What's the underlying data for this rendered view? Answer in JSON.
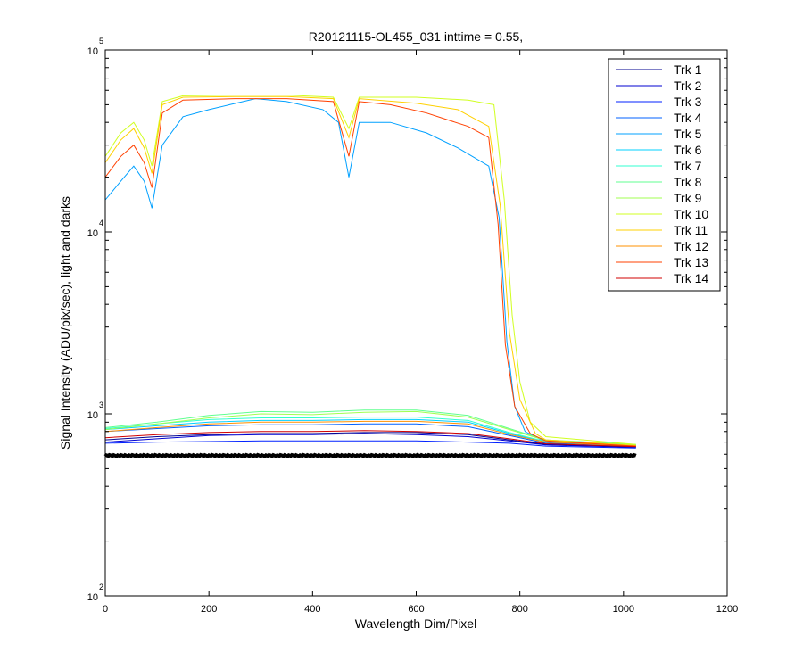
{
  "chart_data": {
    "type": "line",
    "title": "R20121115-OL455_031 inttime = 0.55,",
    "xlabel": "Wavelength Dim/Pixel",
    "ylabel": "Signal Intensity (ADU/pix/sec), light and darks",
    "xlim": [
      0,
      1200
    ],
    "ylim": [
      100,
      100000
    ],
    "y_scale": "log",
    "grid": false,
    "legend_position": "top-right",
    "x_ticks": [
      "0",
      "200",
      "400",
      "600",
      "800",
      "1000",
      "1200"
    ],
    "y_ticks": [
      {
        "base": "10",
        "exp": "2"
      },
      {
        "base": "10",
        "exp": "3"
      },
      {
        "base": "10",
        "exp": "4"
      },
      {
        "base": "10",
        "exp": "5"
      }
    ],
    "series": [
      {
        "name": "Trk 1",
        "color": "#00008f",
        "points": [
          [
            0,
            720
          ],
          [
            100,
            750
          ],
          [
            200,
            770
          ],
          [
            300,
            780
          ],
          [
            400,
            780
          ],
          [
            500,
            790
          ],
          [
            600,
            790
          ],
          [
            700,
            770
          ],
          [
            780,
            720
          ],
          [
            850,
            680
          ],
          [
            1024,
            660
          ]
        ]
      },
      {
        "name": "Trk 2",
        "color": "#0000d0",
        "points": [
          [
            0,
            700
          ],
          [
            100,
            730
          ],
          [
            200,
            760
          ],
          [
            300,
            770
          ],
          [
            400,
            770
          ],
          [
            500,
            780
          ],
          [
            600,
            770
          ],
          [
            700,
            750
          ],
          [
            780,
            710
          ],
          [
            850,
            675
          ],
          [
            1024,
            655
          ]
        ]
      },
      {
        "name": "Trk 3",
        "color": "#0020ff",
        "points": [
          [
            0,
            690
          ],
          [
            100,
            700
          ],
          [
            200,
            705
          ],
          [
            300,
            710
          ],
          [
            400,
            710
          ],
          [
            500,
            710
          ],
          [
            600,
            710
          ],
          [
            700,
            700
          ],
          [
            780,
            690
          ],
          [
            850,
            665
          ],
          [
            1024,
            650
          ]
        ]
      },
      {
        "name": "Trk 4",
        "color": "#0060ff",
        "points": [
          [
            0,
            800
          ],
          [
            100,
            830
          ],
          [
            200,
            860
          ],
          [
            300,
            870
          ],
          [
            400,
            870
          ],
          [
            500,
            880
          ],
          [
            600,
            880
          ],
          [
            700,
            850
          ],
          [
            780,
            760
          ],
          [
            850,
            690
          ],
          [
            1024,
            670
          ]
        ]
      },
      {
        "name": "Trk 5",
        "color": "#00a0ff",
        "points": [
          [
            0,
            15000
          ],
          [
            30,
            19000
          ],
          [
            55,
            23000
          ],
          [
            75,
            19000
          ],
          [
            90,
            13500
          ],
          [
            110,
            30000
          ],
          [
            150,
            43000
          ],
          [
            200,
            47000
          ],
          [
            240,
            50000
          ],
          [
            290,
            54000
          ],
          [
            350,
            52000
          ],
          [
            420,
            47000
          ],
          [
            450,
            40000
          ],
          [
            470,
            20000
          ],
          [
            490,
            40000
          ],
          [
            550,
            40000
          ],
          [
            620,
            35000
          ],
          [
            680,
            29000
          ],
          [
            740,
            23000
          ],
          [
            760,
            12000
          ],
          [
            775,
            2500
          ],
          [
            790,
            1100
          ],
          [
            810,
            800
          ],
          [
            850,
            700
          ],
          [
            1024,
            660
          ]
        ]
      },
      {
        "name": "Trk 6",
        "color": "#00d0ff",
        "points": [
          [
            0,
            820
          ],
          [
            100,
            860
          ],
          [
            200,
            900
          ],
          [
            300,
            920
          ],
          [
            400,
            920
          ],
          [
            500,
            930
          ],
          [
            600,
            930
          ],
          [
            700,
            900
          ],
          [
            780,
            780
          ],
          [
            850,
            700
          ],
          [
            1024,
            670
          ]
        ]
      },
      {
        "name": "Trk 7",
        "color": "#30ffd0",
        "points": [
          [
            0,
            830
          ],
          [
            100,
            880
          ],
          [
            200,
            930
          ],
          [
            300,
            950
          ],
          [
            400,
            950
          ],
          [
            500,
            960
          ],
          [
            600,
            960
          ],
          [
            700,
            920
          ],
          [
            780,
            790
          ],
          [
            850,
            705
          ],
          [
            1024,
            675
          ]
        ]
      },
      {
        "name": "Trk 8",
        "color": "#60ff90",
        "points": [
          [
            0,
            840
          ],
          [
            100,
            900
          ],
          [
            200,
            980
          ],
          [
            300,
            1030
          ],
          [
            400,
            1020
          ],
          [
            500,
            1050
          ],
          [
            600,
            1050
          ],
          [
            700,
            980
          ],
          [
            780,
            830
          ],
          [
            850,
            720
          ],
          [
            1024,
            680
          ]
        ]
      },
      {
        "name": "Trk 9",
        "color": "#a0ff50",
        "points": [
          [
            0,
            820
          ],
          [
            100,
            880
          ],
          [
            200,
            950
          ],
          [
            300,
            1000
          ],
          [
            400,
            990
          ],
          [
            500,
            1020
          ],
          [
            600,
            1030
          ],
          [
            700,
            960
          ],
          [
            780,
            820
          ],
          [
            850,
            715
          ],
          [
            1024,
            675
          ]
        ]
      },
      {
        "name": "Trk 10",
        "color": "#d0ff20",
        "points": [
          [
            0,
            26000
          ],
          [
            30,
            35000
          ],
          [
            55,
            40000
          ],
          [
            75,
            32000
          ],
          [
            90,
            23000
          ],
          [
            110,
            52000
          ],
          [
            150,
            56000
          ],
          [
            250,
            56500
          ],
          [
            350,
            56500
          ],
          [
            440,
            55000
          ],
          [
            470,
            37000
          ],
          [
            490,
            55000
          ],
          [
            600,
            55000
          ],
          [
            700,
            53000
          ],
          [
            750,
            50000
          ],
          [
            770,
            15000
          ],
          [
            785,
            3500
          ],
          [
            800,
            1500
          ],
          [
            820,
            900
          ],
          [
            850,
            750
          ],
          [
            1024,
            680
          ]
        ]
      },
      {
        "name": "Trk 11",
        "color": "#ffd000",
        "points": [
          [
            0,
            24000
          ],
          [
            30,
            32000
          ],
          [
            55,
            37000
          ],
          [
            75,
            29000
          ],
          [
            90,
            21000
          ],
          [
            110,
            50000
          ],
          [
            150,
            55000
          ],
          [
            250,
            55500
          ],
          [
            350,
            55500
          ],
          [
            440,
            54000
          ],
          [
            470,
            33000
          ],
          [
            490,
            54000
          ],
          [
            600,
            51000
          ],
          [
            680,
            47000
          ],
          [
            740,
            38000
          ],
          [
            762,
            14000
          ],
          [
            780,
            2800
          ],
          [
            800,
            1200
          ],
          [
            830,
            780
          ],
          [
            850,
            720
          ],
          [
            1024,
            670
          ]
        ]
      },
      {
        "name": "Trk 12",
        "color": "#ff9000",
        "points": [
          [
            0,
            800
          ],
          [
            100,
            840
          ],
          [
            200,
            880
          ],
          [
            300,
            900
          ],
          [
            400,
            900
          ],
          [
            500,
            910
          ],
          [
            600,
            910
          ],
          [
            700,
            880
          ],
          [
            780,
            770
          ],
          [
            850,
            700
          ],
          [
            1024,
            665
          ]
        ]
      },
      {
        "name": "Trk 13",
        "color": "#ff4000",
        "points": [
          [
            0,
            20000
          ],
          [
            30,
            26000
          ],
          [
            55,
            30000
          ],
          [
            75,
            24000
          ],
          [
            90,
            17500
          ],
          [
            110,
            45000
          ],
          [
            150,
            53000
          ],
          [
            250,
            54000
          ],
          [
            350,
            54000
          ],
          [
            440,
            52000
          ],
          [
            470,
            26000
          ],
          [
            490,
            52000
          ],
          [
            550,
            50000
          ],
          [
            620,
            45000
          ],
          [
            700,
            38000
          ],
          [
            740,
            33000
          ],
          [
            758,
            11000
          ],
          [
            772,
            2400
          ],
          [
            790,
            1100
          ],
          [
            820,
            780
          ],
          [
            850,
            710
          ],
          [
            1024,
            665
          ]
        ]
      },
      {
        "name": "Trk 14",
        "color": "#d00000",
        "points": [
          [
            0,
            740
          ],
          [
            100,
            770
          ],
          [
            200,
            790
          ],
          [
            300,
            800
          ],
          [
            400,
            800
          ],
          [
            500,
            810
          ],
          [
            600,
            800
          ],
          [
            700,
            780
          ],
          [
            780,
            730
          ],
          [
            850,
            685
          ],
          [
            1024,
            660
          ]
        ]
      }
    ]
  }
}
